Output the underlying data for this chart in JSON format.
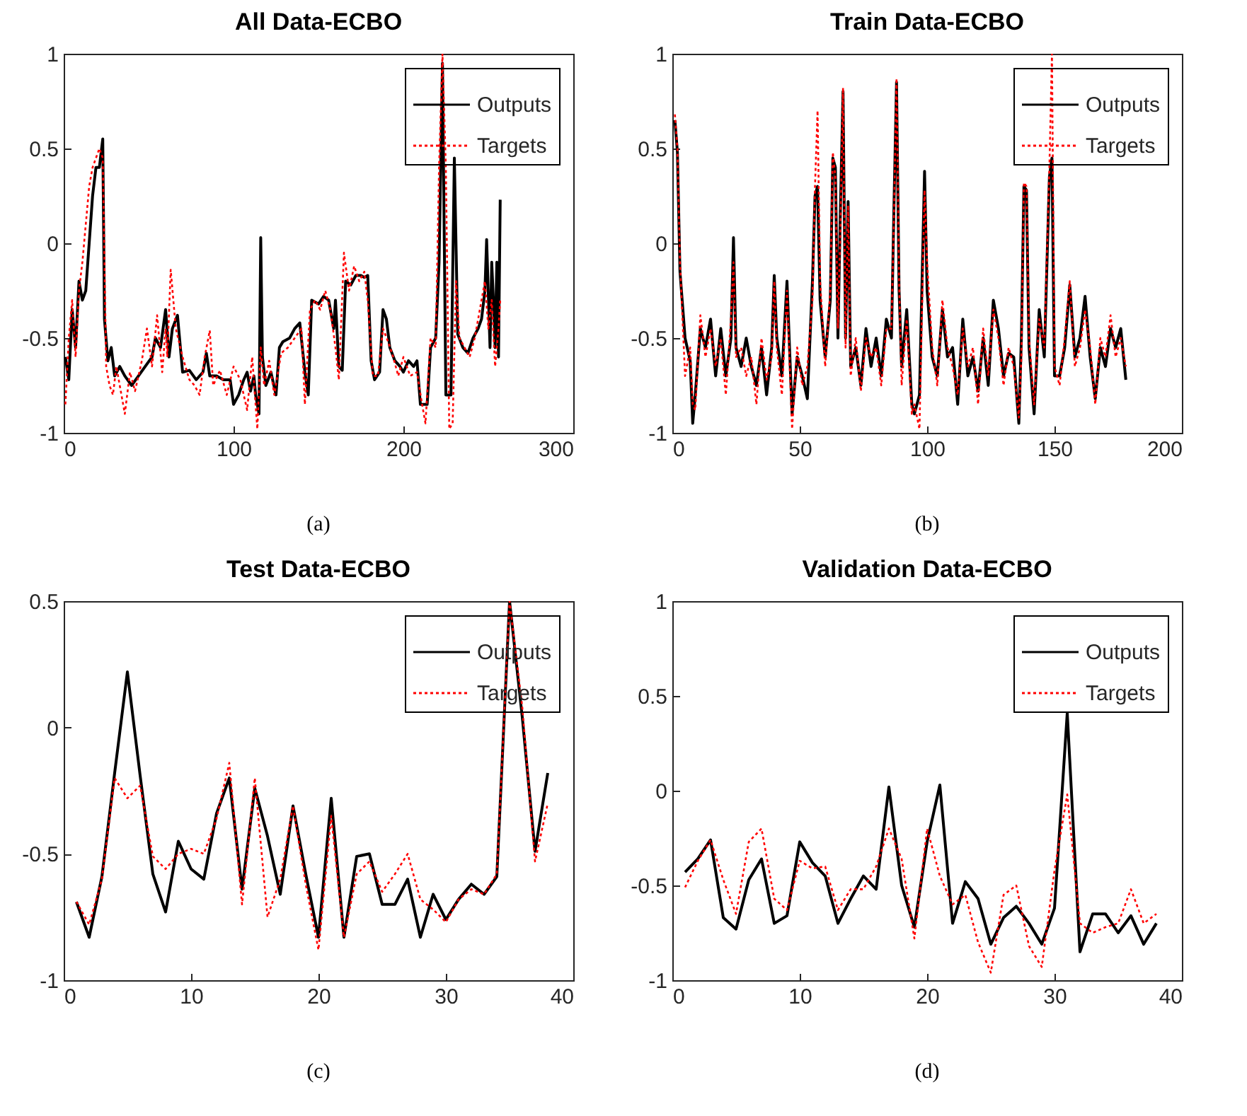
{
  "chart_data": [
    {
      "type": "line",
      "title": "All Data-ECBO",
      "annotations": [
        "(a)"
      ],
      "xlim": [
        0,
        300
      ],
      "xticks": [
        0,
        100,
        200,
        300
      ],
      "ylim": [
        -1,
        1
      ],
      "yticks": [
        -1,
        -0.5,
        0,
        0.5,
        1
      ],
      "legend": "top right",
      "series": [
        {
          "name": "Outputs",
          "color": "#000000",
          "line_style": "solid",
          "x": [
            1,
            3,
            5,
            7,
            9,
            11,
            13,
            15,
            17,
            19,
            21,
            23,
            24,
            26,
            28,
            30,
            33,
            36,
            40,
            44,
            48,
            52,
            54,
            57,
            60,
            62,
            64,
            67,
            70,
            74,
            78,
            82,
            84,
            86,
            90,
            94,
            98,
            100,
            103,
            106,
            108,
            110,
            112,
            113,
            115,
            116,
            117,
            119,
            122,
            125,
            127,
            129,
            133,
            136,
            139,
            142,
            144,
            146,
            150,
            153,
            156,
            159,
            160,
            162,
            164,
            166,
            169,
            172,
            175,
            177,
            179,
            181,
            183,
            186,
            188,
            190,
            192,
            195,
            198,
            200,
            203,
            206,
            208,
            210,
            214,
            216,
            219,
            221,
            223,
            225,
            228,
            230,
            232,
            235,
            238,
            241,
            244,
            246,
            248,
            249,
            251,
            252,
            253,
            254,
            255,
            256,
            257
          ],
          "values": [
            -0.6,
            -0.72,
            -0.35,
            -0.55,
            -0.2,
            -0.3,
            -0.25,
            0.0,
            0.25,
            0.4,
            0.4,
            0.55,
            -0.4,
            -0.62,
            -0.55,
            -0.7,
            -0.65,
            -0.7,
            -0.75,
            -0.7,
            -0.65,
            -0.6,
            -0.5,
            -0.55,
            -0.35,
            -0.6,
            -0.45,
            -0.38,
            -0.68,
            -0.67,
            -0.72,
            -0.68,
            -0.58,
            -0.7,
            -0.7,
            -0.72,
            -0.72,
            -0.85,
            -0.8,
            -0.72,
            -0.68,
            -0.78,
            -0.7,
            -0.8,
            -0.9,
            0.03,
            -0.6,
            -0.75,
            -0.68,
            -0.8,
            -0.55,
            -0.52,
            -0.5,
            -0.45,
            -0.42,
            -0.68,
            -0.8,
            -0.3,
            -0.32,
            -0.28,
            -0.3,
            -0.45,
            -0.3,
            -0.65,
            -0.67,
            -0.2,
            -0.22,
            -0.17,
            -0.17,
            -0.18,
            -0.17,
            -0.62,
            -0.72,
            -0.68,
            -0.35,
            -0.4,
            -0.55,
            -0.62,
            -0.65,
            -0.68,
            -0.62,
            -0.65,
            -0.62,
            -0.85,
            -0.85,
            -0.55,
            -0.5,
            -0.1,
            0.95,
            -0.8,
            -0.8,
            0.45,
            -0.48,
            -0.55,
            -0.58,
            -0.5,
            -0.45,
            -0.4,
            -0.25,
            0.02,
            -0.55,
            -0.1,
            -0.3,
            -0.55,
            -0.1,
            -0.6,
            0.23
          ]
        },
        {
          "name": "Targets",
          "color": "#ff0000",
          "line_style": "dotted",
          "x": [
            1,
            3,
            5,
            7,
            9,
            11,
            13,
            15,
            17,
            19,
            21,
            23,
            25,
            27,
            29,
            31,
            33,
            36,
            39,
            42,
            46,
            49,
            52,
            55,
            58,
            60,
            61,
            63,
            66,
            70,
            74,
            77,
            80,
            83,
            86,
            88,
            92,
            96,
            100,
            104,
            108,
            111,
            114,
            116,
            118,
            121,
            124,
            128,
            132,
            136,
            140,
            142,
            145,
            148,
            151,
            154,
            157,
            160,
            162,
            165,
            168,
            171,
            174,
            177,
            179,
            182,
            185,
            188,
            191,
            194,
            197,
            200,
            204,
            208,
            211,
            213,
            216,
            219,
            221,
            223,
            225,
            227,
            229,
            231,
            233,
            236,
            239,
            242,
            245,
            248,
            250,
            252,
            254,
            256,
            257
          ],
          "values": [
            -0.85,
            -0.5,
            -0.3,
            -0.6,
            -0.25,
            -0.1,
            0.1,
            0.3,
            0.4,
            0.45,
            0.5,
            0.45,
            -0.65,
            -0.75,
            -0.8,
            -0.65,
            -0.75,
            -0.9,
            -0.68,
            -0.78,
            -0.62,
            -0.45,
            -0.65,
            -0.38,
            -0.68,
            -0.45,
            -0.6,
            -0.14,
            -0.45,
            -0.6,
            -0.72,
            -0.75,
            -0.8,
            -0.6,
            -0.46,
            -0.75,
            -0.67,
            -0.8,
            -0.65,
            -0.72,
            -0.88,
            -0.6,
            -0.98,
            -0.55,
            -0.75,
            -0.62,
            -0.8,
            -0.58,
            -0.55,
            -0.5,
            -0.45,
            -0.85,
            -0.35,
            -0.3,
            -0.35,
            -0.25,
            -0.35,
            -0.55,
            -0.72,
            -0.05,
            -0.25,
            -0.12,
            -0.2,
            -0.15,
            -0.3,
            -0.7,
            -0.7,
            -0.45,
            -0.52,
            -0.6,
            -0.7,
            -0.6,
            -0.7,
            -0.68,
            -0.85,
            -0.95,
            -0.5,
            -0.55,
            0.4,
            1.0,
            0.4,
            -0.98,
            -0.95,
            -0.2,
            -0.5,
            -0.55,
            -0.6,
            -0.5,
            -0.35,
            -0.2,
            -0.45,
            -0.3,
            -0.65,
            -0.45,
            -0.3
          ]
        }
      ]
    },
    {
      "type": "line",
      "title": "Train Data-ECBO",
      "annotations": [
        "(b)"
      ],
      "xlim": [
        0,
        200
      ],
      "xticks": [
        0,
        50,
        100,
        150,
        200
      ],
      "ylim": [
        -1,
        1
      ],
      "yticks": [
        -1,
        -0.5,
        0,
        0.5,
        1
      ],
      "legend": "top right",
      "series": [
        {
          "name": "Outputs",
          "color": "#000000",
          "line_style": "solid",
          "x": [
            1,
            2,
            3,
            5,
            7,
            8,
            9,
            11,
            13,
            15,
            17,
            19,
            21,
            23,
            24,
            25,
            27,
            29,
            31,
            33,
            35,
            37,
            39,
            40,
            41,
            43,
            45,
            47,
            49,
            51,
            53,
            55,
            56,
            57,
            58,
            60,
            62,
            63,
            64,
            65,
            66,
            67,
            68,
            69,
            70,
            72,
            74,
            76,
            78,
            80,
            82,
            84,
            86,
            87,
            88,
            89,
            90,
            92,
            94,
            95,
            97,
            99,
            100,
            102,
            104,
            106,
            108,
            110,
            112,
            114,
            116,
            118,
            120,
            122,
            124,
            126,
            128,
            130,
            132,
            134,
            136,
            137,
            138,
            139,
            140,
            142,
            144,
            146,
            148,
            149,
            150,
            152,
            154,
            156,
            158,
            160,
            162,
            164,
            166,
            168,
            170,
            172,
            174,
            176,
            178
          ],
          "values": [
            0.65,
            0.48,
            -0.15,
            -0.5,
            -0.62,
            -0.95,
            -0.8,
            -0.45,
            -0.55,
            -0.4,
            -0.7,
            -0.45,
            -0.7,
            -0.5,
            0.03,
            -0.55,
            -0.65,
            -0.5,
            -0.65,
            -0.75,
            -0.55,
            -0.8,
            -0.55,
            -0.17,
            -0.5,
            -0.7,
            -0.2,
            -0.9,
            -0.6,
            -0.7,
            -0.82,
            -0.2,
            0.25,
            0.3,
            -0.3,
            -0.6,
            -0.3,
            0.45,
            0.4,
            -0.5,
            0.2,
            0.8,
            -0.5,
            0.22,
            -0.65,
            -0.55,
            -0.75,
            -0.45,
            -0.65,
            -0.5,
            -0.7,
            -0.4,
            -0.5,
            0.2,
            0.85,
            -0.25,
            -0.65,
            -0.35,
            -0.85,
            -0.9,
            -0.8,
            0.38,
            -0.25,
            -0.6,
            -0.7,
            -0.35,
            -0.6,
            -0.55,
            -0.85,
            -0.4,
            -0.7,
            -0.6,
            -0.78,
            -0.5,
            -0.75,
            -0.3,
            -0.45,
            -0.7,
            -0.58,
            -0.6,
            -0.95,
            -0.5,
            0.3,
            0.28,
            -0.55,
            -0.9,
            -0.35,
            -0.6,
            0.35,
            0.45,
            -0.7,
            -0.7,
            -0.55,
            -0.22,
            -0.6,
            -0.5,
            -0.28,
            -0.6,
            -0.82,
            -0.55,
            -0.65,
            -0.45,
            -0.55,
            -0.45,
            -0.72
          ]
        },
        {
          "name": "Targets",
          "color": "#ff0000",
          "line_style": "dotted",
          "x": [
            1,
            2,
            3,
            5,
            7,
            8,
            9,
            11,
            13,
            15,
            17,
            19,
            21,
            23,
            24,
            25,
            27,
            29,
            31,
            33,
            35,
            37,
            39,
            40,
            41,
            43,
            45,
            47,
            49,
            51,
            53,
            55,
            56,
            57,
            58,
            60,
            62,
            63,
            64,
            65,
            66,
            67,
            68,
            69,
            70,
            72,
            74,
            76,
            78,
            80,
            82,
            84,
            86,
            87,
            88,
            89,
            90,
            92,
            94,
            95,
            97,
            99,
            100,
            102,
            104,
            106,
            108,
            110,
            112,
            114,
            116,
            118,
            120,
            122,
            124,
            126,
            128,
            130,
            132,
            134,
            136,
            137,
            138,
            139,
            140,
            142,
            144,
            146,
            148,
            149,
            150,
            152,
            154,
            156,
            158,
            160,
            162,
            164,
            166,
            168,
            170,
            172,
            174,
            176,
            178
          ],
          "values": [
            0.68,
            0.5,
            -0.1,
            -0.7,
            -0.55,
            -0.85,
            -0.88,
            -0.38,
            -0.6,
            -0.45,
            -0.65,
            -0.5,
            -0.8,
            -0.4,
            -0.1,
            -0.6,
            -0.55,
            -0.7,
            -0.6,
            -0.85,
            -0.5,
            -0.72,
            -0.6,
            -0.2,
            -0.55,
            -0.8,
            -0.25,
            -0.98,
            -0.55,
            -0.75,
            -0.65,
            -0.3,
            0.3,
            0.7,
            -0.2,
            -0.65,
            -0.25,
            0.48,
            0.35,
            -0.45,
            0.1,
            0.82,
            -0.55,
            0.2,
            -0.7,
            -0.5,
            -0.78,
            -0.5,
            -0.6,
            -0.55,
            -0.75,
            -0.45,
            -0.45,
            0.15,
            0.87,
            -0.2,
            -0.75,
            -0.4,
            -0.9,
            -0.85,
            -0.98,
            0.28,
            -0.1,
            -0.55,
            -0.75,
            -0.3,
            -0.55,
            -0.65,
            -0.8,
            -0.45,
            -0.65,
            -0.55,
            -0.85,
            -0.45,
            -0.7,
            -0.35,
            -0.5,
            -0.75,
            -0.55,
            -0.65,
            -0.92,
            -0.6,
            0.32,
            0.3,
            -0.5,
            -0.85,
            -0.4,
            -0.55,
            0.4,
            1.0,
            -0.65,
            -0.75,
            -0.5,
            -0.2,
            -0.65,
            -0.55,
            -0.35,
            -0.55,
            -0.85,
            -0.5,
            -0.6,
            -0.38,
            -0.6,
            -0.5,
            -0.65
          ]
        }
      ]
    },
    {
      "type": "line",
      "title": "Test Data-ECBO",
      "annotations": [
        "(c)"
      ],
      "xlim": [
        0,
        40
      ],
      "xticks": [
        0,
        10,
        20,
        30,
        40
      ],
      "ylim": [
        -1,
        0.5
      ],
      "yticks": [
        -1,
        -0.5,
        0,
        0.5
      ],
      "legend": "top right",
      "x": [
        1,
        2,
        3,
        4,
        5,
        6,
        7,
        8,
        9,
        10,
        11,
        12,
        13,
        14,
        15,
        16,
        17,
        18,
        19,
        20,
        21,
        22,
        23,
        24,
        25,
        26,
        27,
        28,
        29,
        30,
        31,
        32,
        33,
        34,
        35,
        36,
        37,
        38
      ],
      "series": [
        {
          "name": "Outputs",
          "color": "#000000",
          "line_style": "solid",
          "values": [
            -0.69,
            -0.83,
            -0.59,
            -0.18,
            0.22,
            -0.19,
            -0.58,
            -0.73,
            -0.45,
            -0.56,
            -0.6,
            -0.34,
            -0.2,
            -0.64,
            -0.24,
            -0.43,
            -0.66,
            -0.31,
            -0.58,
            -0.83,
            -0.28,
            -0.83,
            -0.51,
            -0.5,
            -0.7,
            -0.7,
            -0.6,
            -0.83,
            -0.66,
            -0.76,
            -0.68,
            -0.62,
            -0.66,
            -0.59,
            0.5,
            0.04,
            -0.49,
            -0.18
          ]
        },
        {
          "name": "Targets",
          "color": "#ff0000",
          "line_style": "dotted",
          "values": [
            -0.69,
            -0.78,
            -0.6,
            -0.2,
            -0.28,
            -0.23,
            -0.51,
            -0.56,
            -0.5,
            -0.48,
            -0.5,
            -0.36,
            -0.14,
            -0.7,
            -0.2,
            -0.75,
            -0.6,
            -0.31,
            -0.62,
            -0.88,
            -0.35,
            -0.83,
            -0.58,
            -0.53,
            -0.65,
            -0.58,
            -0.5,
            -0.68,
            -0.72,
            -0.77,
            -0.68,
            -0.64,
            -0.66,
            -0.58,
            0.5,
            0.08,
            -0.53,
            -0.3
          ]
        }
      ]
    },
    {
      "type": "line",
      "title": "Validation Data-ECBO",
      "annotations": [
        "(d)"
      ],
      "xlim": [
        0,
        40
      ],
      "xticks": [
        0,
        10,
        20,
        30,
        40
      ],
      "ylim": [
        -1,
        1
      ],
      "yticks": [
        -1,
        -0.5,
        0,
        0.5,
        1
      ],
      "legend": "top right",
      "x": [
        1,
        2,
        3,
        4,
        5,
        6,
        7,
        8,
        9,
        10,
        11,
        12,
        13,
        14,
        15,
        16,
        17,
        18,
        19,
        20,
        21,
        22,
        23,
        24,
        25,
        26,
        27,
        28,
        29,
        30,
        31,
        32,
        33,
        34,
        35,
        36,
        37,
        38
      ],
      "series": [
        {
          "name": "Outputs",
          "color": "#000000",
          "line_style": "solid",
          "values": [
            -0.43,
            -0.36,
            -0.26,
            -0.67,
            -0.73,
            -0.47,
            -0.36,
            -0.7,
            -0.66,
            -0.27,
            -0.38,
            -0.45,
            -0.7,
            -0.57,
            -0.45,
            -0.52,
            0.02,
            -0.5,
            -0.72,
            -0.27,
            0.03,
            -0.7,
            -0.48,
            -0.57,
            -0.81,
            -0.67,
            -0.61,
            -0.7,
            -0.81,
            -0.62,
            0.41,
            -0.85,
            -0.65,
            -0.65,
            -0.75,
            -0.66,
            -0.81,
            -0.7
          ]
        },
        {
          "name": "Targets",
          "color": "#ff0000",
          "line_style": "dotted",
          "values": [
            -0.51,
            -0.37,
            -0.26,
            -0.47,
            -0.65,
            -0.27,
            -0.2,
            -0.57,
            -0.63,
            -0.37,
            -0.41,
            -0.4,
            -0.63,
            -0.52,
            -0.52,
            -0.4,
            -0.2,
            -0.36,
            -0.78,
            -0.2,
            -0.45,
            -0.6,
            -0.55,
            -0.8,
            -0.96,
            -0.55,
            -0.5,
            -0.82,
            -0.93,
            -0.42,
            -0.02,
            -0.7,
            -0.75,
            -0.72,
            -0.7,
            -0.52,
            -0.7,
            -0.65
          ]
        }
      ]
    }
  ]
}
